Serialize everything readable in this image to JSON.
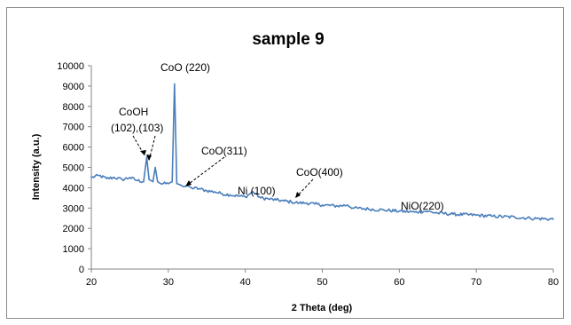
{
  "chart_data": {
    "type": "line",
    "title": "sample 9",
    "xlabel": "2 Theta (deg)",
    "ylabel": "Intensity (a.u.)",
    "xlim": [
      20,
      80
    ],
    "ylim": [
      0,
      10000
    ],
    "xticks": [
      "20",
      "30",
      "40",
      "50",
      "60",
      "70",
      "80"
    ],
    "yticks": [
      "0",
      "1000",
      "2000",
      "3000",
      "4000",
      "5000",
      "6000",
      "7000",
      "8000",
      "9000",
      "10000"
    ],
    "grid": false,
    "legend": "none",
    "series_color": "#4a7ebb",
    "series": [
      {
        "x": [
          20.0,
          21.0,
          22.0,
          23.0,
          24.0,
          25.0,
          26.0,
          26.8,
          27.2,
          27.5,
          28.0,
          28.3,
          28.6,
          29.0,
          30.0,
          30.5,
          30.8,
          31.1,
          31.5,
          32.0,
          32.5,
          33.0,
          34.0,
          35.0,
          36.0,
          37.0,
          38.0,
          39.0,
          40.0,
          41.0,
          42.0,
          43.0,
          44.0,
          45.0,
          46.0,
          47.0,
          48.0,
          49.0,
          50.0,
          52.0,
          53.3,
          54.0,
          56.0,
          58.0,
          60.0,
          62.0,
          63.5,
          65.0,
          67.0,
          70.0,
          72.0,
          75.0,
          77.0,
          80.0
        ],
        "y": [
          4500,
          4600,
          4450,
          4500,
          4400,
          4500,
          4350,
          4300,
          5500,
          4400,
          4300,
          5000,
          4300,
          4200,
          4200,
          4300,
          9100,
          4200,
          4150,
          4050,
          4100,
          4000,
          3950,
          3850,
          3800,
          3700,
          3650,
          3600,
          3550,
          3800,
          3500,
          3450,
          3400,
          3350,
          3300,
          3250,
          3250,
          3200,
          3150,
          3100,
          3150,
          3000,
          2950,
          2900,
          2850,
          2800,
          2850,
          2750,
          2700,
          2650,
          2600,
          2550,
          2500,
          2450
        ]
      }
    ],
    "annotations": [
      {
        "text": "CoO (220)"
      },
      {
        "text": "CoOH"
      },
      {
        "text": "(102),(103)"
      },
      {
        "text": "CoO(311)"
      },
      {
        "text": "Ni (100)"
      },
      {
        "text": "CoO(400)"
      },
      {
        "text": "NiO(220)"
      }
    ]
  }
}
